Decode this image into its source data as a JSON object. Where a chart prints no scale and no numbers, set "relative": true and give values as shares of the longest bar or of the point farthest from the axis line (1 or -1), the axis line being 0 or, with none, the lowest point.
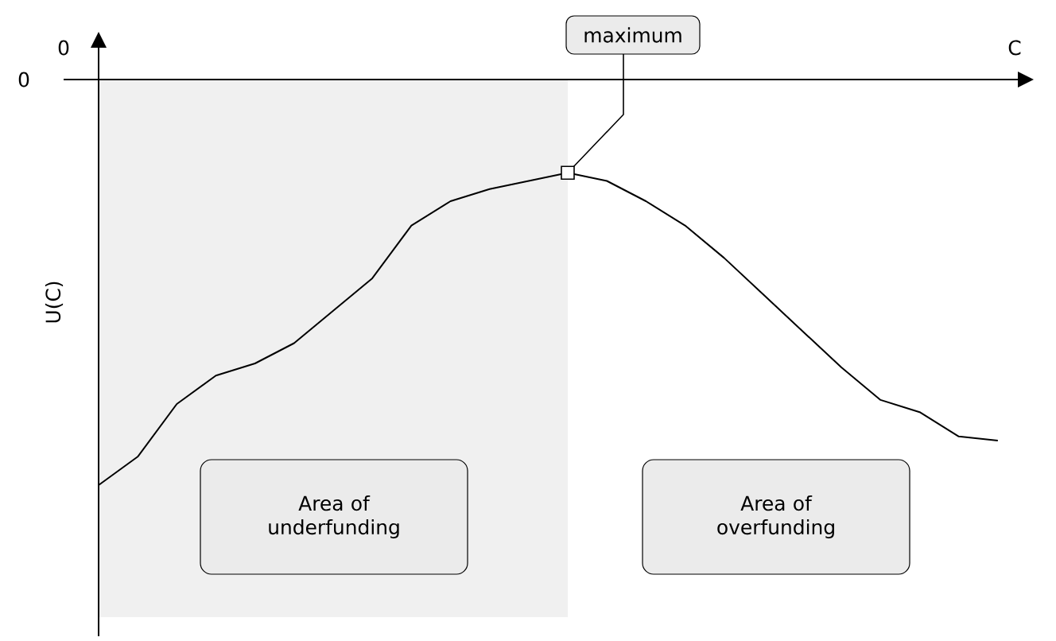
{
  "chart_data": {
    "type": "line",
    "relative": true,
    "xlabel": "C",
    "ylabel": "U(C)",
    "categories": [
      null,
      null,
      null,
      null,
      null,
      null,
      null,
      null,
      null,
      null,
      null,
      null,
      null,
      null,
      null,
      null,
      null,
      null,
      null,
      null,
      null,
      null,
      null,
      null
    ],
    "series": [
      {
        "color": "#000000",
        "values": [
          -1,
          -0.93,
          -0.8,
          -0.73,
          -0.7,
          -0.65,
          -0.57,
          -0.49,
          -0.36,
          -0.3,
          -0.27,
          -0.25,
          -0.23,
          -0.25,
          -0.3,
          -0.36,
          -0.44,
          -0.53,
          -0.62,
          -0.71,
          -0.79,
          -0.82,
          -0.88,
          -0.89
        ]
      }
    ],
    "annotations": [
      "0",
      "0",
      "maximum",
      "Area of underfunding",
      "Area of overfunding"
    ]
  }
}
